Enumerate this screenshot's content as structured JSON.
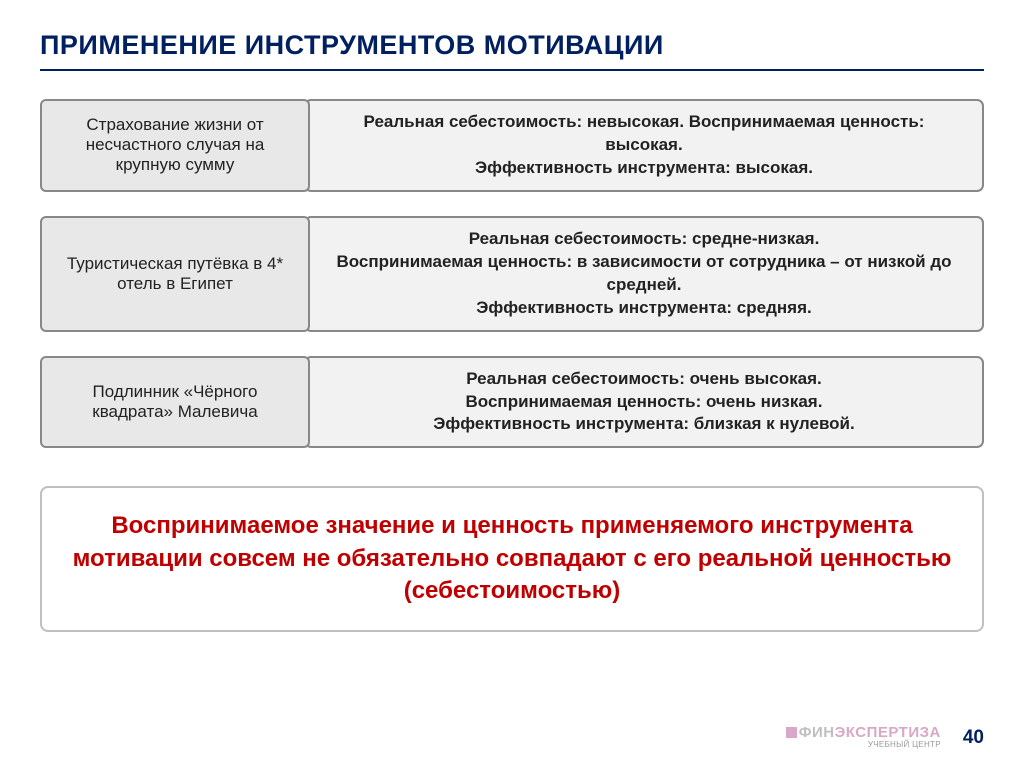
{
  "title": "ПРИМЕНЕНИЕ ИНСТРУМЕНТОВ МОТИВАЦИИ",
  "rows": [
    {
      "left": "Страхование жизни от несчастного случая на крупную сумму",
      "right_line1": "Реальная себестоимость: невысокая. Воспринимаемая ценность: высокая.",
      "right_line2": "Эффективность инструмента: высокая.",
      "right_line3": ""
    },
    {
      "left": "Туристическая путёвка в 4* отель в Египет",
      "right_line1": "Реальная себестоимость: средне-низкая.",
      "right_line2": "Воспринимаемая ценность: в зависимости от сотрудника – от низкой до средней.",
      "right_line3": "Эффективность инструмента: средняя."
    },
    {
      "left": "Подлинник «Чёрного квадрата» Малевича",
      "right_line1": "Реальная себестоимость: очень высокая.",
      "right_line2": "Воспринимаемая ценность: очень низкая.",
      "right_line3": "Эффективность инструмента: близкая к нулевой."
    }
  ],
  "conclusion": "Воспринимаемое значение и ценность применяемого инструмента мотивации совсем не обязательно совпадают с его реальной ценностью (себестоимостью)",
  "logo": {
    "part1": "ФИН",
    "part2": "ЭКСПЕРТИЗА",
    "subtitle": "УЧЕБНЫЙ ЦЕНТР"
  },
  "page_number": "40",
  "colors": {
    "title": "#002060",
    "underline": "#002060",
    "left_box_bg": "#e8e8e8",
    "right_box_bg": "#f2f2f2",
    "box_border": "#888888",
    "conclusion_border": "#bfbfbf",
    "conclusion_text": "#c00000",
    "logo_fin": "#bfbfbf",
    "logo_exp": "#d9a8c8",
    "page_num": "#002060"
  },
  "fonts": {
    "title_size": 27,
    "box_size": 17,
    "conclusion_size": 24,
    "page_num_size": 19
  }
}
